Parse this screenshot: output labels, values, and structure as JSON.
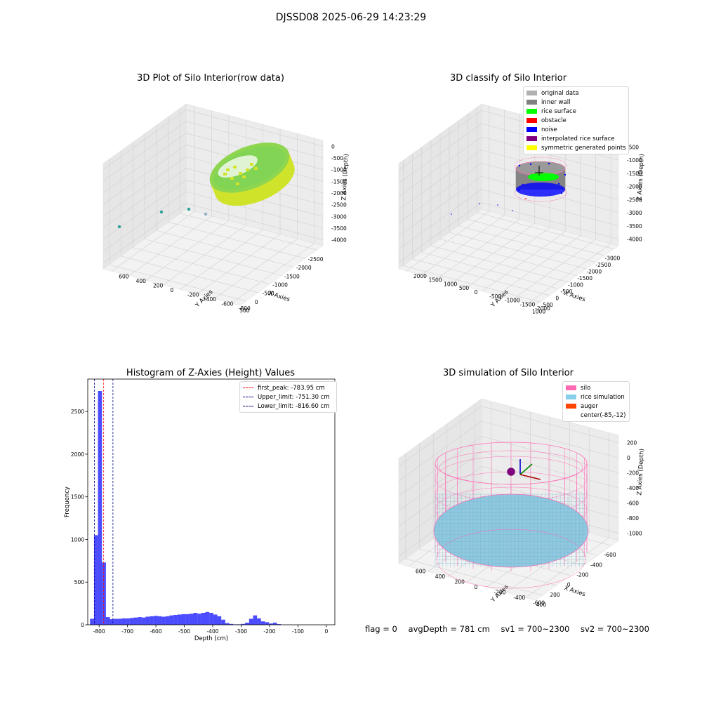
{
  "figure": {
    "suptitle": "DJSSD08 2025-06-29 14:23:29"
  },
  "panels": {
    "raw": {
      "title": "3D Plot of Silo Interior(row data)",
      "xlabel": "X Axies",
      "ylabel": "Y Axies",
      "zlabel": "Z Axies (Depth)",
      "xticks": [
        "-2500",
        "-2000",
        "-1500",
        "-1000",
        "-500",
        "0",
        "500"
      ],
      "yticks": [
        "-800",
        "-600",
        "-400",
        "-200",
        "0",
        "200",
        "400",
        "600"
      ],
      "zticks": [
        "0",
        "-500",
        "-1000",
        "-1500",
        "-2000",
        "-2500",
        "-3000",
        "-3500",
        "-4000"
      ]
    },
    "classify": {
      "title": "3D classify of Silo Interior",
      "xlabel": "X Axies",
      "ylabel": "Y Axies",
      "zlabel": "Z Axies (Depth)",
      "xticks": [
        "-3000",
        "-2500",
        "-2000",
        "-1500",
        "-1000",
        "-500",
        "0",
        "500",
        "1000"
      ],
      "yticks": [
        "-2000",
        "-1500",
        "-1000",
        "-500",
        "0",
        "500",
        "1000",
        "1500",
        "2000"
      ],
      "zticks": [
        "-500",
        "-1000",
        "-1500",
        "-2000",
        "-2500",
        "-3000",
        "-3500",
        "-4000"
      ],
      "legend": [
        {
          "label": "original data",
          "color": "#b0b0b0"
        },
        {
          "label": "inner wall",
          "color": "#808080"
        },
        {
          "label": "rice surface",
          "color": "#00ff00"
        },
        {
          "label": "obstacle",
          "color": "#ff0000"
        },
        {
          "label": "noise",
          "color": "#0000ff"
        },
        {
          "label": "interpolated rice surface",
          "color": "#800080"
        },
        {
          "label": "symmetric generated points",
          "color": "#ffff00"
        }
      ]
    },
    "simulation": {
      "title": "3D simulation of Silo Interior",
      "xlabel": "X Axies",
      "ylabel": "Y Axies",
      "zlabel": "Z Axies (Depth)",
      "xticks": [
        "-600",
        "-400",
        "-200",
        "0",
        "200",
        "400"
      ],
      "yticks": [
        "-600",
        "-400",
        "-200",
        "0",
        "200",
        "400",
        "600"
      ],
      "zticks": [
        "200",
        "0",
        "-200",
        "-400",
        "-600",
        "-800",
        "-1000"
      ],
      "legend": [
        {
          "label": "silo",
          "color": "#ff69b4"
        },
        {
          "label": "rice simulation",
          "color": "#87ceeb"
        },
        {
          "label": "auger",
          "color": "#ff4500"
        },
        {
          "label": "center(-85,-12)",
          "color": ""
        }
      ]
    }
  },
  "chart_data": [
    {
      "type": "scatter",
      "title": "3D Plot of Silo Interior(row data)",
      "xlabel": "X Axies",
      "ylabel": "Y Axies",
      "zlabel": "Z Axies (Depth)",
      "xlim": [
        -2700,
        600
      ],
      "ylim": [
        -850,
        700
      ],
      "zlim": [
        -4200,
        100
      ],
      "grid": true
    },
    {
      "type": "scatter",
      "title": "3D classify of Silo Interior",
      "xlabel": "X Axies",
      "ylabel": "Y Axies",
      "zlabel": "Z Axies (Depth)",
      "xlim": [
        -3100,
        1000
      ],
      "ylim": [
        -2000,
        2000
      ],
      "zlim": [
        -4000,
        -400
      ],
      "grid": true,
      "legend_position": "top-right"
    },
    {
      "type": "bar",
      "title": "Histogram of Z-Axies (Height) Values",
      "xlabel": "Depth (cm)",
      "ylabel": "Frequency",
      "xlim": [
        -840,
        30
      ],
      "ylim": [
        0,
        2880
      ],
      "xticks": [
        "-800",
        "-700",
        "-600",
        "-500",
        "-400",
        "-300",
        "-200",
        "-100",
        "0"
      ],
      "yticks": [
        "0",
        "500",
        "1000",
        "1500",
        "2000",
        "2500"
      ],
      "bin_width": 14,
      "bin_start": -832,
      "values": [
        70,
        1050,
        2740,
        730,
        90,
        65,
        70,
        70,
        75,
        75,
        80,
        85,
        90,
        85,
        95,
        100,
        105,
        100,
        95,
        100,
        110,
        115,
        120,
        125,
        125,
        130,
        140,
        130,
        140,
        150,
        140,
        120,
        100,
        60,
        20,
        10,
        5,
        5,
        10,
        25,
        70,
        110,
        75,
        40,
        30,
        15,
        25,
        8
      ],
      "color": "#0000ff",
      "reference_lines": [
        {
          "name": "first_peak",
          "value": -783.95,
          "label": "first_peak: -783.95 cm",
          "color": "#ff0000"
        },
        {
          "name": "Upper_limit",
          "value": -751.3,
          "label": "Upper_limit: -751.30 cm",
          "color": "#00008b"
        },
        {
          "name": "Lower_limit",
          "value": -816.6,
          "label": "Lower_limit: -816.60 cm",
          "color": "#00008b"
        }
      ],
      "legend_position": "top-right"
    },
    {
      "type": "scatter",
      "title": "3D simulation of Silo Interior",
      "xlabel": "X Axies",
      "ylabel": "Y Axies",
      "zlabel": "Z Axies (Depth)",
      "xlim": [
        -700,
        500
      ],
      "ylim": [
        -700,
        700
      ],
      "zlim": [
        -1100,
        300
      ],
      "grid": true,
      "legend_position": "top-right"
    }
  ],
  "status": {
    "flag": "flag = 0",
    "avg_depth": "avgDepth = 781 cm",
    "sv1": "sv1 = 700~2300",
    "sv2": "sv2 = 700~2300"
  }
}
